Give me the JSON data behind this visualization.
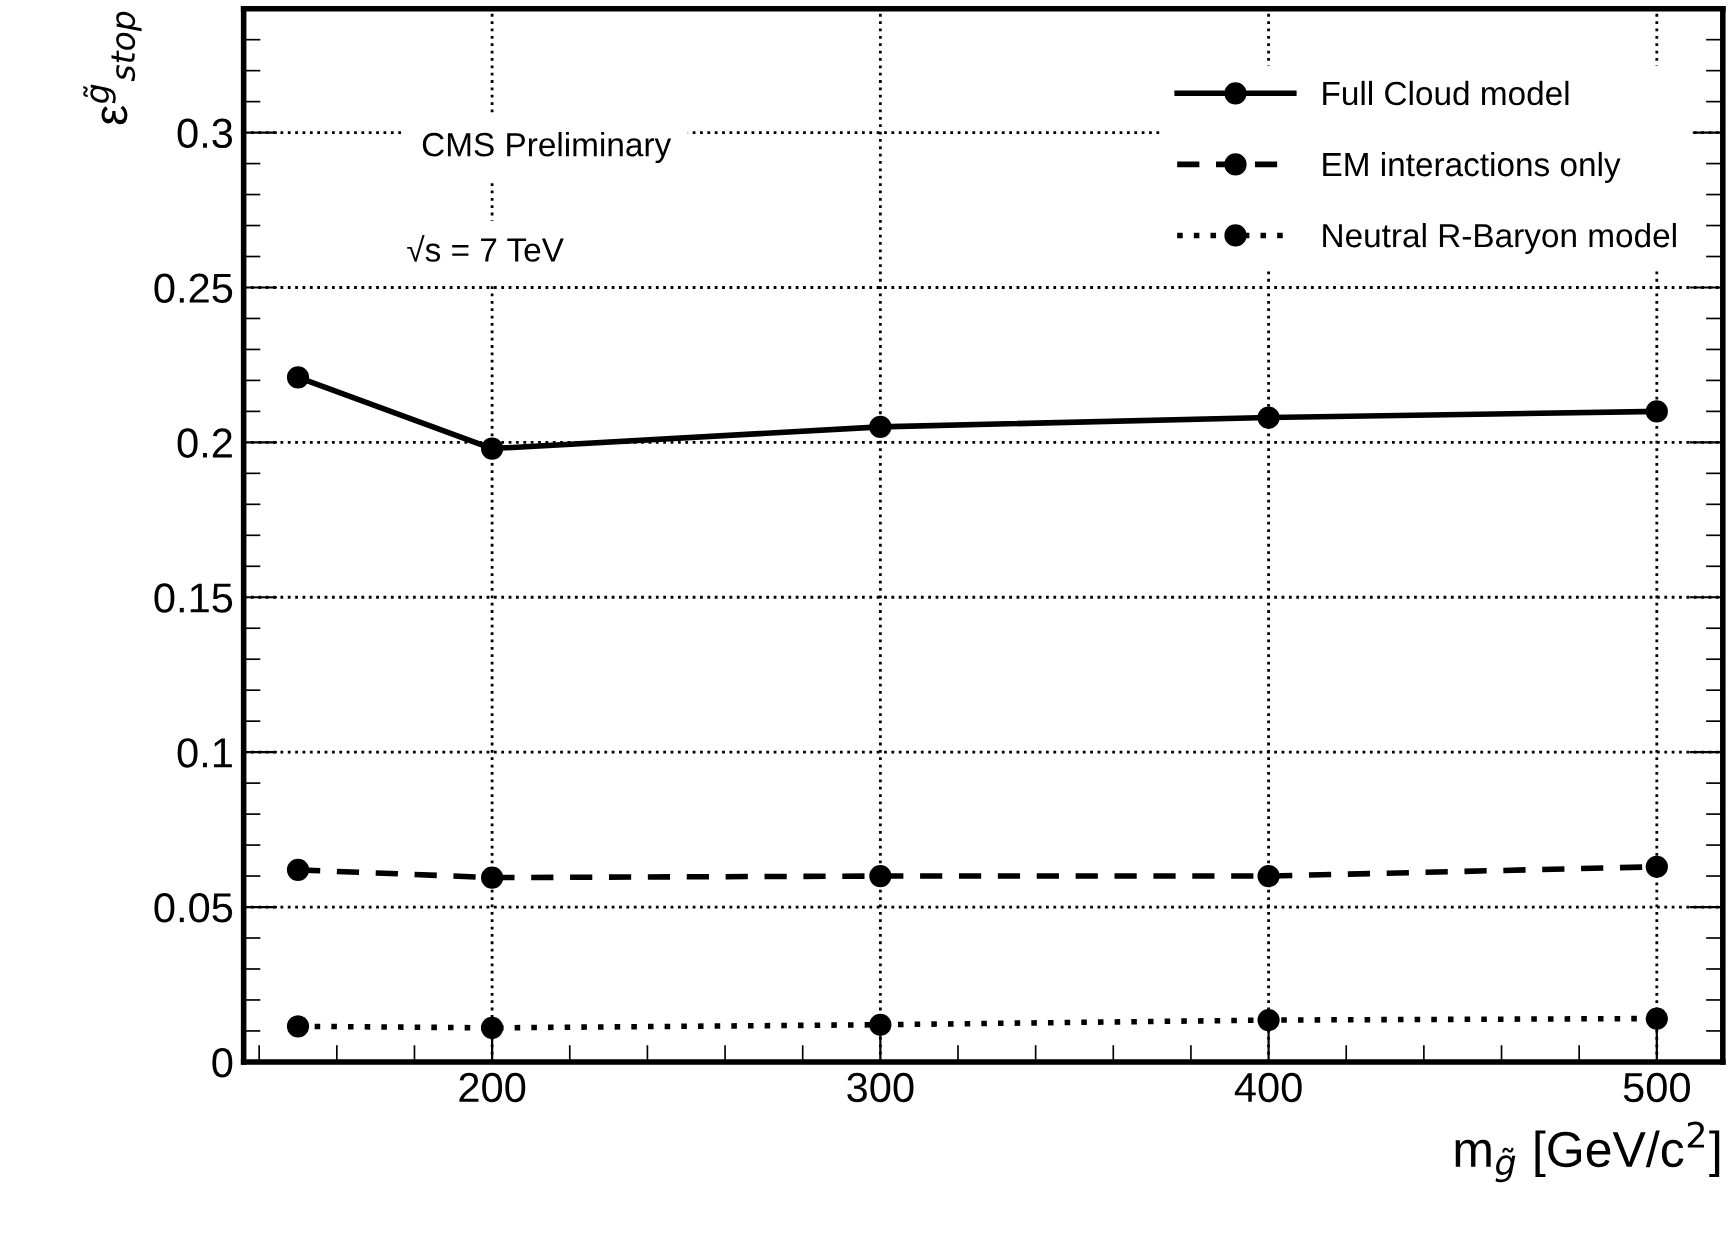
{
  "chart_data": {
    "type": "line",
    "xlabel": "m$_{g̃}$ [GeV/c$^{2}$]",
    "ylabel": "ε$^{g̃}$$_{stop}$",
    "annotations": [
      "CMS Preliminary",
      "√s = 7 TeV"
    ],
    "x": [
      150,
      200,
      300,
      400,
      500
    ],
    "series": [
      {
        "name": "Full Cloud model",
        "color": "#000000",
        "line_style": "solid",
        "values": [
          0.221,
          0.198,
          0.205,
          0.208,
          0.21
        ]
      },
      {
        "name": "EM interactions only",
        "color": "#000000",
        "line_style": "dashed",
        "values": [
          0.062,
          0.0595,
          0.06,
          0.06,
          0.063
        ]
      },
      {
        "name": "Neutral R-Baryon model",
        "color": "#000000",
        "line_style": "dotted",
        "values": [
          0.0115,
          0.011,
          0.012,
          0.0135,
          0.014
        ]
      }
    ],
    "xlim": [
      136,
      517
    ],
    "xticks": [
      200,
      300,
      400,
      500
    ],
    "ylim": [
      0,
      0.34
    ],
    "yticks": [
      0,
      0.05,
      0.1,
      0.15,
      0.2,
      0.25,
      0.3
    ],
    "grid": true,
    "legend": "top right",
    "marker": "circle"
  }
}
